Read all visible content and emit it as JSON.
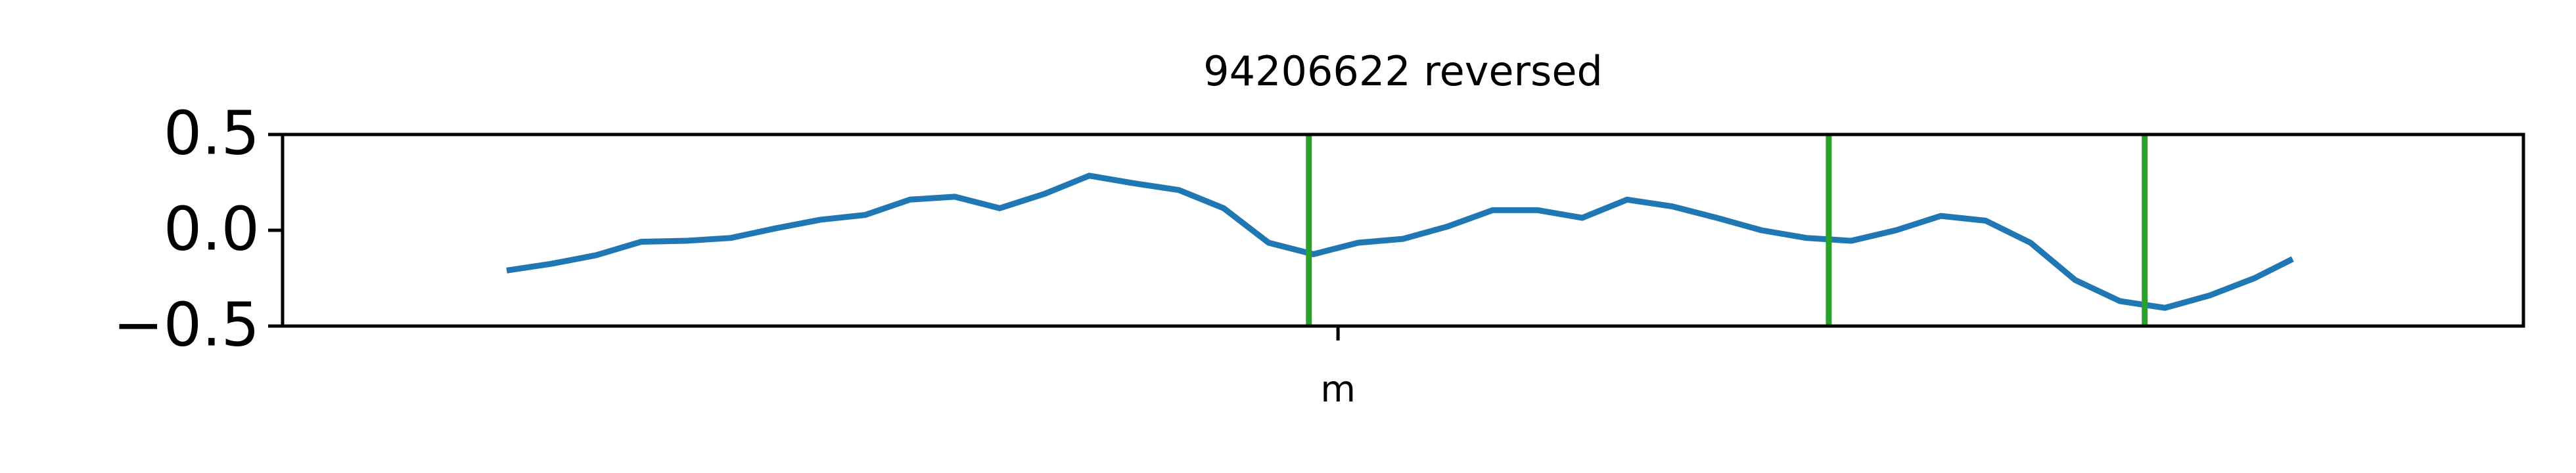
{
  "chart_data": {
    "type": "line",
    "title": "94206622 reversed",
    "x": [
      10,
      12,
      14,
      16,
      18,
      20,
      22,
      24,
      26,
      28,
      30,
      32,
      34,
      36,
      38,
      40,
      42,
      44,
      46,
      48,
      50,
      52,
      54,
      56,
      58,
      60,
      62,
      64,
      66,
      68,
      70,
      72,
      74,
      76,
      78,
      80,
      82,
      84,
      86,
      88,
      89.7
    ],
    "series": [
      {
        "color": "#1f77b4",
        "values": [
          -0.21,
          -0.175,
          -0.13,
          -0.06,
          -0.055,
          -0.04,
          0.01,
          0.055,
          0.08,
          0.16,
          0.175,
          0.115,
          0.19,
          0.285,
          0.245,
          0.21,
          0.115,
          -0.065,
          -0.125,
          -0.065,
          -0.045,
          0.02,
          0.105,
          0.105,
          0.065,
          0.16,
          0.125,
          0.065,
          0,
          -0.04,
          -0.055,
          0,
          0.075,
          0.05,
          -0.065,
          -0.26,
          -0.37,
          -0.405,
          -0.34,
          -0.25,
          -0.15
        ]
      }
    ],
    "vlines": {
      "color": "#2ca02c",
      "values": [
        45.8,
        69.0,
        83.1
      ]
    },
    "xlim": [
      0,
      100
    ],
    "xticks": [
      {
        "value": 47.1,
        "label": "m"
      }
    ],
    "ylim": [
      -0.5,
      0.5
    ],
    "yticks": [
      {
        "value": -0.5,
        "label": "−0.5"
      },
      {
        "value": 0,
        "label": "0.0"
      },
      0.5
    ]
  }
}
